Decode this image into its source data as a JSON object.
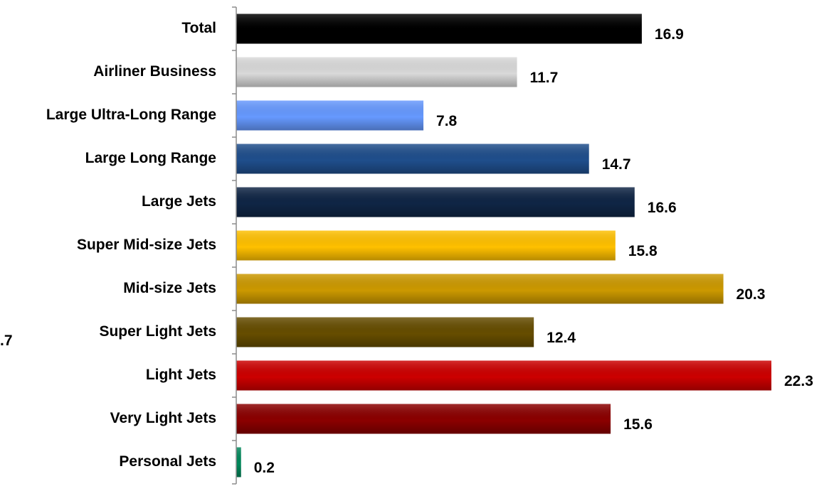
{
  "chart_data": {
    "type": "bar",
    "orientation": "horizontal",
    "title": "",
    "xlabel": "",
    "ylabel": "",
    "categories": [
      "Total",
      "Airliner Business",
      "Large Ultra-Long Range",
      "Large Long Range",
      "Large Jets",
      "Super Mid-size Jets",
      "Mid-size Jets",
      "Super Light Jets",
      "Light Jets",
      "Very Light Jets",
      "Personal Jets"
    ],
    "values": [
      16.9,
      11.7,
      7.8,
      14.7,
      16.6,
      15.8,
      20.3,
      12.4,
      22.3,
      15.6,
      0.2
    ],
    "value_labels": [
      "16.9",
      "11.7",
      "7.8",
      "14.7",
      "16.6",
      "15.8",
      "20.3",
      "12.4",
      "22.3",
      "15.6",
      "0.2"
    ],
    "colors": [
      "#000000",
      "#d9d9d9",
      "#6699ff",
      "#1f4e8c",
      "#0f2545",
      "#ffc000",
      "#cc9900",
      "#664d00",
      "#cc0000",
      "#8b0000",
      "#00875a"
    ],
    "xlim": [
      0,
      22.3
    ],
    "grid": false,
    "legend": "none"
  },
  "clipped_label": ".7"
}
